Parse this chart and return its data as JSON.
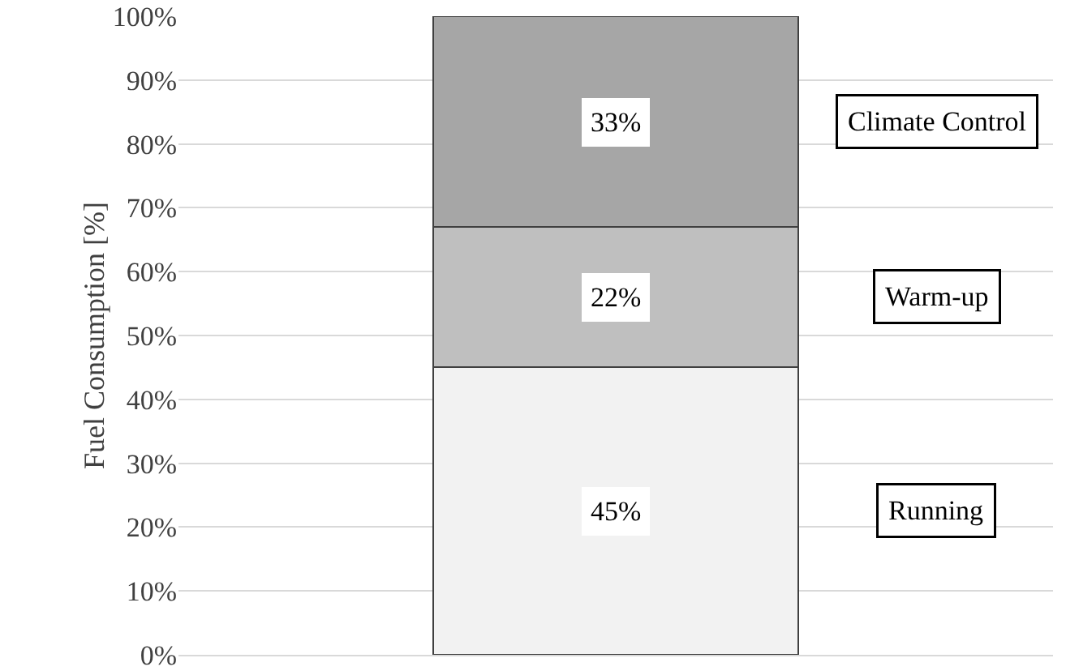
{
  "chart_data": {
    "type": "bar",
    "stacked": true,
    "ylabel": "Fuel Consumption [%]",
    "categories": [
      null
    ],
    "series": [
      {
        "name": "Running",
        "color": "#f2f2f2",
        "values": [
          45
        ],
        "value_labels": [
          "45%"
        ]
      },
      {
        "name": "Warm-up",
        "color": "#bfbfbf",
        "values": [
          22
        ],
        "value_labels": [
          "22%"
        ]
      },
      {
        "name": "Climate Control",
        "color": "#a6a6a6",
        "values": [
          33
        ],
        "value_labels": [
          "33%"
        ]
      }
    ],
    "ylim": [
      0,
      100
    ],
    "yticks": [
      {
        "value": 0,
        "label": "0%"
      },
      {
        "value": 10,
        "label": "10%"
      },
      {
        "value": 20,
        "label": "20%"
      },
      {
        "value": 30,
        "label": "30%"
      },
      {
        "value": 40,
        "label": "40%"
      },
      {
        "value": 50,
        "label": "50%"
      },
      {
        "value": 60,
        "label": "60%"
      },
      {
        "value": 70,
        "label": "70%"
      },
      {
        "value": 80,
        "label": "80%"
      },
      {
        "value": 90,
        "label": "90%"
      },
      {
        "value": 100,
        "label": "100%"
      }
    ],
    "grid": "y",
    "legend": false,
    "tick_labels": "y"
  }
}
